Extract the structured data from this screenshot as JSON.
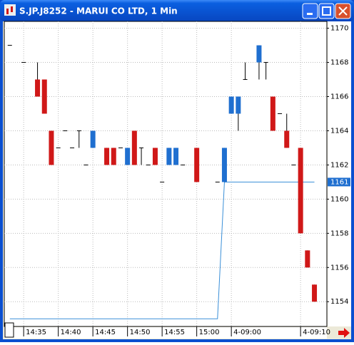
{
  "chart_data": {
    "type": "candlestick",
    "title": "S.JP.J8252 - MARUI CO LTD, 1 Min",
    "x": [
      0,
      2,
      4,
      5,
      6,
      7,
      8,
      9,
      10,
      11,
      12,
      14,
      15,
      16,
      17,
      18,
      19,
      20,
      21,
      22,
      23,
      24,
      25,
      27,
      30,
      31,
      32,
      33,
      34,
      36,
      37,
      38,
      39,
      40,
      41,
      42,
      43,
      44
    ],
    "open": [
      1169,
      1168,
      1167,
      1167,
      1164,
      1163,
      1164,
      1163,
      1164,
      1162,
      1163,
      1163,
      1163,
      1163,
      1162,
      1164,
      1163,
      1162,
      1163,
      1161,
      1162,
      1162,
      1162,
      1163,
      1161,
      1161,
      1165,
      1165,
      1167,
      1168,
      1168,
      1166,
      1165,
      1164,
      1162,
      1163,
      1157,
      1155
    ],
    "high": [
      1169,
      1168,
      1168,
      1167,
      1164,
      1163,
      1164,
      1163,
      1164,
      1162,
      1164,
      1163,
      1163,
      1163,
      1163,
      1164,
      1163,
      1162,
      1163,
      1161,
      1163,
      1163,
      1162,
      1163,
      1161,
      1163,
      1166,
      1166,
      1168,
      1169,
      1168,
      1166,
      1165,
      1165,
      1162,
      1163,
      1157,
      1155
    ],
    "low": [
      1169,
      1168,
      1166,
      1165,
      1162,
      1163,
      1164,
      1163,
      1163,
      1162,
      1163,
      1162,
      1162,
      1163,
      1162,
      1162,
      1162,
      1162,
      1162,
      1161,
      1162,
      1162,
      1162,
      1161,
      1161,
      1161,
      1165,
      1164,
      1167,
      1167,
      1167,
      1164,
      1165,
      1163,
      1162,
      1158,
      1156,
      1154
    ],
    "close": [
      1169,
      1168,
      1166,
      1165,
      1162,
      1163,
      1164,
      1163,
      1164,
      1162,
      1164,
      1162,
      1162,
      1163,
      1163,
      1162,
      1163,
      1162,
      1162,
      1161,
      1163,
      1163,
      1162,
      1161,
      1161,
      1163,
      1166,
      1166,
      1167,
      1169,
      1168,
      1164,
      1165,
      1163,
      1162,
      1158,
      1156,
      1154
    ],
    "up_color": "#1f6fd0",
    "down_color": "#d01818",
    "line": {
      "color": "#3a8fd8",
      "x": [
        0,
        30,
        31,
        44
      ],
      "values": [
        1153,
        1153,
        1161,
        1161
      ]
    },
    "last_price": 1161,
    "xlim": [
      -0.8,
      45.8
    ],
    "ylim": [
      1152.55,
      1170.4
    ],
    "xticks": [
      {
        "value": 2,
        "label": "14:35"
      },
      {
        "value": 7,
        "label": "14:40"
      },
      {
        "value": 12,
        "label": "14:45"
      },
      {
        "value": 17,
        "label": "14:50"
      },
      {
        "value": 22,
        "label": "14:55"
      },
      {
        "value": 27,
        "label": "15:00"
      },
      {
        "value": 32,
        "label": "4-09:00"
      },
      {
        "value": 42,
        "label": "4-09:10"
      }
    ],
    "yticks": [
      1154,
      1156,
      1158,
      1160,
      1162,
      1164,
      1166,
      1168,
      1170
    ],
    "grid": true
  }
}
